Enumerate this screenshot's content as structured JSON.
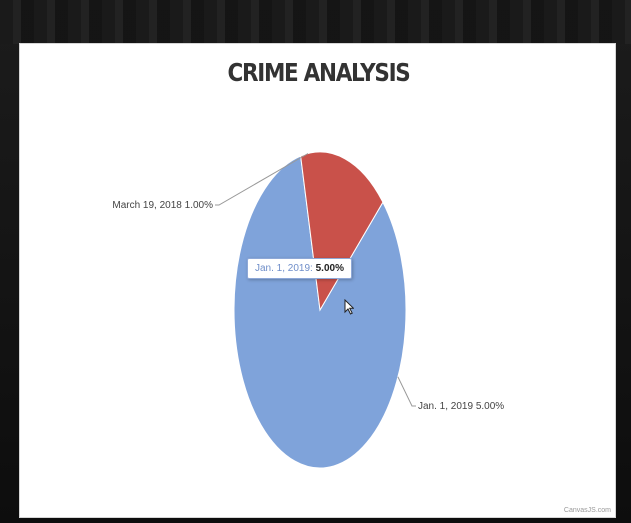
{
  "chart_data": {
    "type": "pie",
    "title": "CRIME ANALYSIS",
    "slices": [
      {
        "label": "Jan. 1, 2019",
        "value": 5.0,
        "display": "Jan. 1, 2019 5.00%",
        "color": "#7fa3da"
      },
      {
        "label": "March 19, 2018",
        "value": 1.0,
        "display": "March 19, 2018 1.00%",
        "color": "#c9514a"
      }
    ],
    "unit": "%",
    "legend": "none"
  },
  "tooltip": {
    "name": "Jan. 1, 2019",
    "separator": ":",
    "value": "5.00%"
  },
  "credit": "CanvasJS.com"
}
